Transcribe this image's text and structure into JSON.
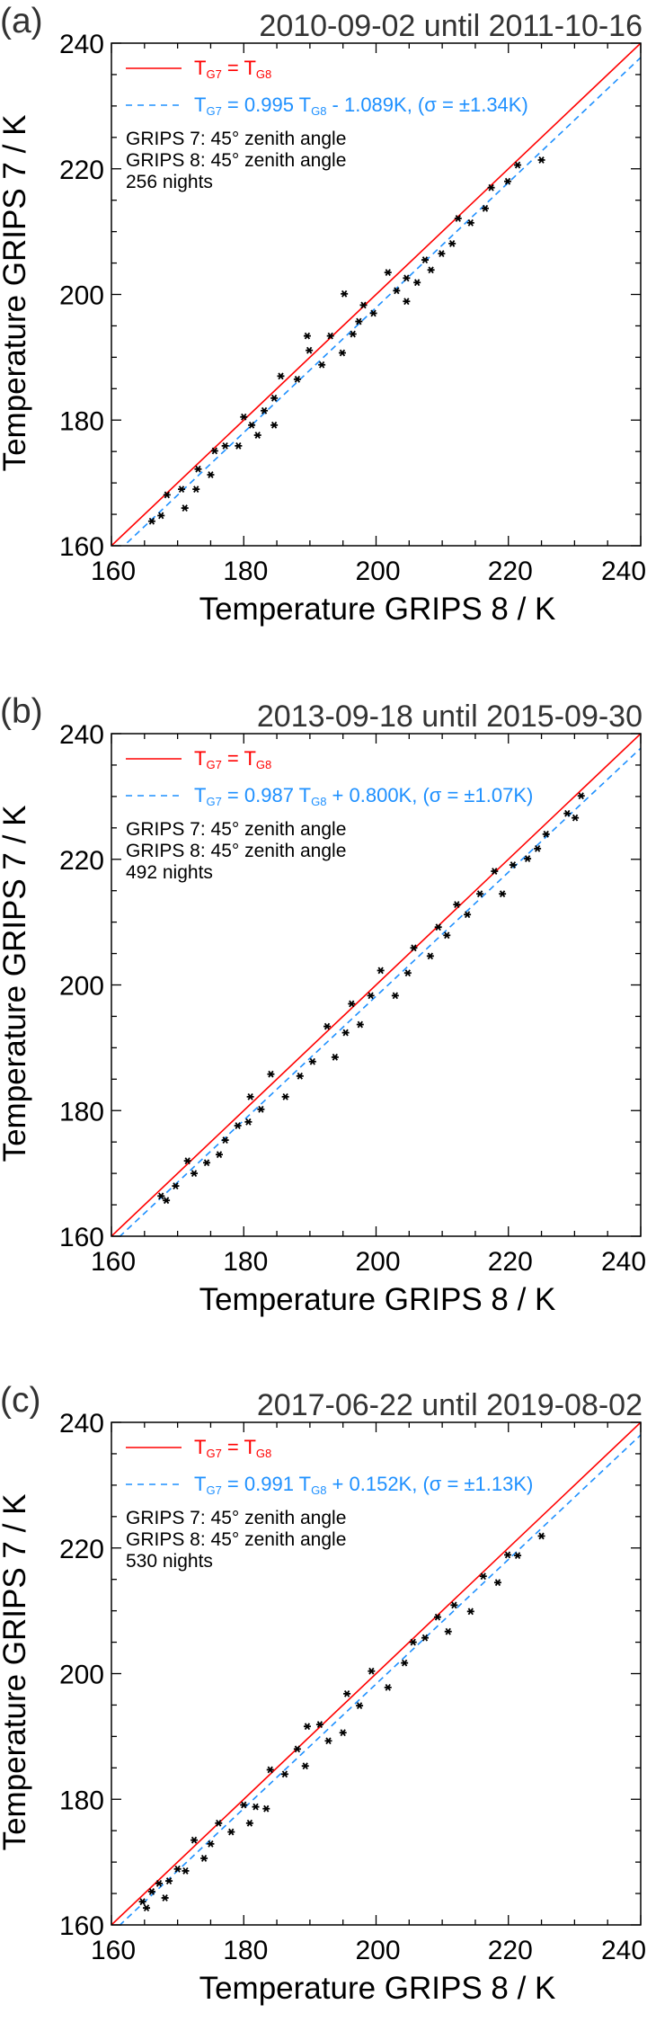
{
  "colors": {
    "identity": "#ff0000",
    "fit": "#1e90ff",
    "points": "#000000"
  },
  "chart_data": [
    {
      "type": "scatter",
      "panel_label": "(a)",
      "title": "2010-09-02 until 2011-10-16",
      "xlabel": "Temperature GRIPS 8 / K",
      "ylabel": "Temperature GRIPS 7 / K",
      "xlim": [
        160,
        240
      ],
      "ylim": [
        160,
        240
      ],
      "xticks": [
        "160",
        "180",
        "200",
        "220",
        "240"
      ],
      "yticks": [
        "160",
        "180",
        "200",
        "220",
        "240"
      ],
      "legend": {
        "identity": {
          "lhs": "T",
          "lhs_sub": "G7",
          "eq": " = T",
          "rhs_sub": "G8"
        },
        "fit": {
          "lhs": "T",
          "lhs_sub": "G7",
          "mid": " = 0.995 T",
          "mid_sub": "G8",
          "rest": " - 1.089K, (σ = ±1.34K)"
        }
      },
      "fit": {
        "slope": 0.995,
        "intercept": -1.089,
        "sigma": 1.34
      },
      "info": [
        "GRIPS 7: 45° zenith angle",
        "GRIPS 8: 45° zenith angle",
        "256 nights"
      ],
      "points": [
        [
          166.1,
          163.9
        ],
        [
          167.5,
          164.8
        ],
        [
          168.4,
          168.1
        ],
        [
          170.6,
          169.0
        ],
        [
          171.1,
          166.0
        ],
        [
          172.8,
          169.0
        ],
        [
          173.1,
          172.2
        ],
        [
          175.0,
          171.3
        ],
        [
          175.6,
          175.1
        ],
        [
          177.2,
          175.9
        ],
        [
          179.2,
          175.9
        ],
        [
          180.0,
          180.5
        ],
        [
          181.2,
          179.2
        ],
        [
          182.1,
          177.6
        ],
        [
          183.1,
          181.5
        ],
        [
          184.6,
          179.2
        ],
        [
          184.6,
          183.5
        ],
        [
          185.6,
          187.0
        ],
        [
          188.1,
          186.5
        ],
        [
          189.6,
          193.4
        ],
        [
          189.9,
          191.1
        ],
        [
          191.8,
          188.8
        ],
        [
          193.1,
          193.4
        ],
        [
          194.9,
          190.7
        ],
        [
          195.2,
          200.1
        ],
        [
          196.5,
          193.7
        ],
        [
          197.4,
          195.7
        ],
        [
          198.1,
          198.3
        ],
        [
          199.6,
          197.0
        ],
        [
          201.8,
          203.5
        ],
        [
          203.1,
          200.6
        ],
        [
          204.6,
          198.9
        ],
        [
          204.6,
          202.6
        ],
        [
          206.2,
          201.9
        ],
        [
          207.4,
          205.5
        ],
        [
          208.3,
          203.9
        ],
        [
          209.9,
          206.5
        ],
        [
          211.5,
          208.1
        ],
        [
          212.4,
          212.1
        ],
        [
          214.3,
          211.4
        ],
        [
          216.5,
          213.7
        ],
        [
          217.4,
          217.0
        ],
        [
          219.9,
          218.0
        ],
        [
          221.4,
          220.6
        ],
        [
          225.0,
          221.4
        ]
      ]
    },
    {
      "type": "scatter",
      "panel_label": "(b)",
      "title": "2013-09-18 until 2015-09-30",
      "xlabel": "Temperature GRIPS 8 / K",
      "ylabel": "Temperature GRIPS 7 / K",
      "xlim": [
        160,
        240
      ],
      "ylim": [
        160,
        240
      ],
      "xticks": [
        "160",
        "180",
        "200",
        "220",
        "240"
      ],
      "yticks": [
        "160",
        "180",
        "200",
        "220",
        "240"
      ],
      "legend": {
        "identity": {
          "lhs": "T",
          "lhs_sub": "G7",
          "eq": " = T",
          "rhs_sub": "G8"
        },
        "fit": {
          "lhs": "T",
          "lhs_sub": "G7",
          "mid": " = 0.987 T",
          "mid_sub": "G8",
          "rest": " + 0.800K, (σ = ±1.07K)"
        }
      },
      "fit": {
        "slope": 0.987,
        "intercept": 0.8,
        "sigma": 1.07
      },
      "info": [
        "GRIPS 7: 45° zenith angle",
        "GRIPS 8: 45° zenith angle",
        "492 nights"
      ],
      "points": [
        [
          167.5,
          166.4
        ],
        [
          168.3,
          165.7
        ],
        [
          169.7,
          168.0
        ],
        [
          171.5,
          172.0
        ],
        [
          172.5,
          170.0
        ],
        [
          174.4,
          171.7
        ],
        [
          176.3,
          173.0
        ],
        [
          177.2,
          175.3
        ],
        [
          179.1,
          177.6
        ],
        [
          180.7,
          178.2
        ],
        [
          181.0,
          182.2
        ],
        [
          182.6,
          180.2
        ],
        [
          184.1,
          185.8
        ],
        [
          186.3,
          182.2
        ],
        [
          188.5,
          185.5
        ],
        [
          190.4,
          187.8
        ],
        [
          192.6,
          193.4
        ],
        [
          193.8,
          188.5
        ],
        [
          195.4,
          192.4
        ],
        [
          196.3,
          197.0
        ],
        [
          197.6,
          193.7
        ],
        [
          199.2,
          198.3
        ],
        [
          200.7,
          202.3
        ],
        [
          202.9,
          198.3
        ],
        [
          204.8,
          201.9
        ],
        [
          205.7,
          205.9
        ],
        [
          208.2,
          204.6
        ],
        [
          209.4,
          209.2
        ],
        [
          210.7,
          207.9
        ],
        [
          212.2,
          212.8
        ],
        [
          213.8,
          211.2
        ],
        [
          215.7,
          214.5
        ],
        [
          217.9,
          218.1
        ],
        [
          219.1,
          214.5
        ],
        [
          220.7,
          219.1
        ],
        [
          222.9,
          220.1
        ],
        [
          224.4,
          221.7
        ],
        [
          225.7,
          224.0
        ],
        [
          228.9,
          227.3
        ],
        [
          230.1,
          226.6
        ],
        [
          231.0,
          230.1
        ]
      ]
    },
    {
      "type": "scatter",
      "panel_label": "(c)",
      "title": "2017-06-22 until 2019-08-02",
      "xlabel": "Temperature GRIPS 8 / K",
      "ylabel": "Temperature GRIPS 7 / K",
      "xlim": [
        160,
        240
      ],
      "ylim": [
        160,
        240
      ],
      "xticks": [
        "160",
        "180",
        "200",
        "220",
        "240"
      ],
      "yticks": [
        "160",
        "180",
        "200",
        "220",
        "240"
      ],
      "legend": {
        "identity": {
          "lhs": "T",
          "lhs_sub": "G7",
          "eq": " = T",
          "rhs_sub": "G8"
        },
        "fit": {
          "lhs": "T",
          "lhs_sub": "G7",
          "mid": " = 0.991 T",
          "mid_sub": "G8",
          "rest": " + 0.152K, (σ = ±1.13K)"
        }
      },
      "fit": {
        "slope": 0.991,
        "intercept": 0.152,
        "sigma": 1.13
      },
      "info": [
        "GRIPS 7: 45° zenith angle",
        "GRIPS 8: 45° zenith angle",
        "530 nights"
      ],
      "points": [
        [
          164.7,
          163.7
        ],
        [
          165.3,
          162.7
        ],
        [
          166.1,
          165.3
        ],
        [
          167.2,
          166.6
        ],
        [
          168.1,
          164.3
        ],
        [
          168.7,
          167.0
        ],
        [
          170.0,
          168.9
        ],
        [
          171.2,
          168.6
        ],
        [
          172.5,
          173.5
        ],
        [
          174.0,
          170.6
        ],
        [
          175.0,
          172.9
        ],
        [
          176.2,
          176.2
        ],
        [
          178.1,
          174.8
        ],
        [
          180.0,
          179.1
        ],
        [
          180.9,
          176.2
        ],
        [
          181.8,
          178.8
        ],
        [
          183.4,
          178.5
        ],
        [
          184.0,
          184.7
        ],
        [
          186.2,
          184.0
        ],
        [
          188.1,
          188.0
        ],
        [
          189.3,
          185.3
        ],
        [
          189.6,
          191.6
        ],
        [
          191.5,
          191.9
        ],
        [
          192.8,
          189.3
        ],
        [
          195.0,
          190.6
        ],
        [
          195.6,
          196.8
        ],
        [
          197.5,
          194.9
        ],
        [
          199.3,
          200.4
        ],
        [
          201.8,
          197.8
        ],
        [
          204.3,
          201.7
        ],
        [
          205.6,
          205.0
        ],
        [
          207.4,
          205.7
        ],
        [
          209.3,
          209.0
        ],
        [
          210.9,
          206.7
        ],
        [
          211.8,
          210.9
        ],
        [
          214.3,
          209.9
        ],
        [
          216.2,
          215.5
        ],
        [
          218.4,
          214.5
        ],
        [
          219.9,
          218.9
        ],
        [
          221.4,
          218.8
        ],
        [
          225.0,
          221.9
        ]
      ]
    }
  ]
}
